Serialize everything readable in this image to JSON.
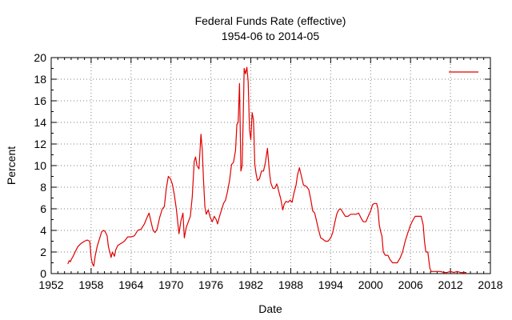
{
  "chart_data": {
    "type": "line",
    "title": "Federal Funds Rate (effective)",
    "subtitle": "1954-06 to 2014-05",
    "xlabel": "Date",
    "ylabel": "Percent",
    "xlim": [
      1952,
      2018
    ],
    "ylim": [
      0,
      20
    ],
    "xticks": [
      "1952",
      "1958",
      "1964",
      "1970",
      "1976",
      "1982",
      "1988",
      "1994",
      "2000",
      "2006",
      "2012",
      "2018"
    ],
    "yticks": [
      "0",
      "2",
      "4",
      "6",
      "8",
      "10",
      "12",
      "14",
      "16",
      "18",
      "20"
    ],
    "grid": true,
    "legend_position": "top-right",
    "colors": {
      "line": "#e00000",
      "grid": "#808080",
      "axis": "#000000"
    },
    "series": [
      {
        "name": "",
        "x": [
          1954.5,
          1954.7,
          1954.9,
          1955.0,
          1955.3,
          1955.6,
          1956.0,
          1956.5,
          1957.0,
          1957.4,
          1957.8,
          1958.0,
          1958.2,
          1958.4,
          1958.6,
          1958.9,
          1959.2,
          1959.6,
          1959.9,
          1960.1,
          1960.4,
          1960.6,
          1960.8,
          1961.0,
          1961.2,
          1961.5,
          1961.7,
          1962.0,
          1962.5,
          1963.0,
          1963.5,
          1964.0,
          1964.5,
          1965.0,
          1965.5,
          1966.0,
          1966.4,
          1966.7,
          1967.0,
          1967.3,
          1967.6,
          1967.9,
          1968.3,
          1968.7,
          1969.0,
          1969.3,
          1969.6,
          1969.9,
          1970.2,
          1970.5,
          1970.8,
          1971.0,
          1971.2,
          1971.5,
          1971.8,
          1972.0,
          1972.3,
          1972.6,
          1972.9,
          1973.2,
          1973.5,
          1973.7,
          1973.9,
          1974.2,
          1974.5,
          1974.7,
          1974.9,
          1975.1,
          1975.3,
          1975.6,
          1975.9,
          1976.2,
          1976.5,
          1976.8,
          1977.0,
          1977.3,
          1977.6,
          1977.9,
          1978.2,
          1978.5,
          1978.8,
          1979.1,
          1979.4,
          1979.7,
          1979.9,
          1980.1,
          1980.3,
          1980.5,
          1980.7,
          1980.9,
          1981.0,
          1981.2,
          1981.4,
          1981.6,
          1981.8,
          1982.0,
          1982.2,
          1982.4,
          1982.6,
          1982.8,
          1983.0,
          1983.3,
          1983.6,
          1983.9,
          1984.2,
          1984.5,
          1984.8,
          1985.0,
          1985.3,
          1985.6,
          1985.9,
          1986.2,
          1986.5,
          1986.8,
          1987.0,
          1987.3,
          1987.6,
          1987.9,
          1988.2,
          1988.5,
          1988.8,
          1989.0,
          1989.3,
          1989.6,
          1989.9,
          1990.3,
          1990.7,
          1991.0,
          1991.3,
          1991.6,
          1991.9,
          1992.2,
          1992.5,
          1992.8,
          1993.2,
          1993.6,
          1994.0,
          1994.3,
          1994.6,
          1994.9,
          1995.2,
          1995.5,
          1995.8,
          1996.2,
          1996.6,
          1997.0,
          1997.4,
          1997.8,
          1998.2,
          1998.6,
          1998.9,
          1999.3,
          1999.7,
          2000.0,
          2000.3,
          2000.6,
          2000.9,
          2001.1,
          2001.3,
          2001.5,
          2001.7,
          2001.9,
          2002.2,
          2002.6,
          2002.9,
          2003.3,
          2003.6,
          2004.0,
          2004.4,
          2004.8,
          2005.2,
          2005.6,
          2006.0,
          2006.4,
          2006.7,
          2007.0,
          2007.3,
          2007.6,
          2007.9,
          2008.1,
          2008.3,
          2008.6,
          2008.9,
          2009.1,
          2009.5,
          2010.0,
          2010.5,
          2011.0,
          2011.5,
          2012.0,
          2012.5,
          2013.0,
          2013.5,
          2014.0,
          2014.4
        ],
        "values": [
          0.9,
          1.2,
          1.1,
          1.3,
          1.6,
          2.0,
          2.5,
          2.8,
          3.0,
          3.1,
          3.0,
          1.5,
          0.9,
          0.7,
          1.6,
          2.5,
          3.1,
          3.9,
          4.0,
          3.9,
          3.5,
          2.5,
          2.0,
          1.5,
          2.0,
          1.6,
          2.2,
          2.6,
          2.8,
          3.0,
          3.4,
          3.4,
          3.5,
          4.0,
          4.1,
          4.6,
          5.2,
          5.6,
          4.8,
          4.0,
          3.8,
          4.1,
          5.2,
          6.0,
          6.2,
          7.9,
          9.0,
          8.8,
          8.3,
          7.3,
          6.0,
          4.9,
          3.7,
          4.9,
          5.6,
          3.3,
          4.3,
          4.8,
          5.3,
          7.1,
          10.4,
          10.8,
          10.0,
          9.7,
          12.9,
          11.5,
          8.5,
          6.2,
          5.5,
          5.9,
          5.2,
          4.8,
          5.3,
          5.0,
          4.6,
          5.3,
          5.9,
          6.5,
          6.8,
          7.6,
          8.6,
          10.1,
          10.3,
          11.4,
          13.8,
          14.0,
          17.6,
          9.5,
          10.0,
          15.8,
          19.0,
          18.5,
          19.1,
          17.8,
          13.3,
          12.4,
          14.9,
          14.2,
          10.1,
          9.2,
          8.6,
          8.8,
          9.5,
          9.5,
          10.3,
          11.6,
          9.4,
          8.4,
          7.9,
          7.9,
          8.3,
          7.6,
          6.9,
          5.9,
          6.4,
          6.7,
          6.6,
          6.8,
          6.6,
          7.5,
          8.2,
          9.1,
          9.8,
          9.0,
          8.2,
          8.1,
          7.8,
          6.9,
          5.8,
          5.6,
          4.8,
          4.0,
          3.3,
          3.2,
          3.0,
          3.0,
          3.3,
          3.8,
          4.7,
          5.5,
          5.9,
          6.0,
          5.7,
          5.3,
          5.3,
          5.5,
          5.5,
          5.5,
          5.6,
          5.1,
          4.8,
          4.8,
          5.4,
          5.8,
          6.4,
          6.5,
          6.5,
          6.0,
          4.5,
          3.9,
          3.5,
          2.0,
          1.7,
          1.7,
          1.3,
          1.0,
          1.0,
          1.0,
          1.4,
          2.0,
          3.0,
          3.8,
          4.5,
          5.0,
          5.3,
          5.3,
          5.3,
          5.3,
          4.5,
          3.0,
          2.0,
          2.0,
          0.5,
          0.2,
          0.2,
          0.2,
          0.2,
          0.1,
          0.1,
          0.2,
          0.1,
          0.2,
          0.1,
          0.1,
          0.1
        ]
      }
    ]
  }
}
